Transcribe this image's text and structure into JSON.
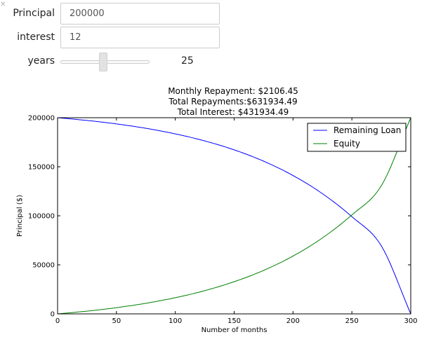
{
  "controls": {
    "principal": {
      "label": "Principal",
      "value": "200000"
    },
    "interest": {
      "label": "interest",
      "value": "12"
    },
    "years": {
      "label": "years",
      "value": 25,
      "min": 0,
      "max": 50,
      "readout": "25"
    }
  },
  "chart_data": {
    "type": "line",
    "title_lines": [
      "Monthly Repayment: $2106.45",
      "Total Repayments:$631934.49",
      "Total Interest: $431934.49"
    ],
    "xlabel": "Number of months",
    "ylabel": "Principal ($)",
    "xlim": [
      0,
      300
    ],
    "ylim": [
      0,
      200000
    ],
    "xticks": [
      0,
      50,
      100,
      150,
      200,
      250,
      300
    ],
    "yticks": [
      0,
      50000,
      100000,
      150000,
      200000
    ],
    "legend": "top-right",
    "grid": false,
    "series": [
      {
        "name": "Remaining Loan",
        "color": "#0000ff",
        "x": [
          0,
          25,
          50,
          75,
          100,
          125,
          150,
          175,
          200,
          225,
          250,
          275,
          300
        ],
        "y": [
          200000,
          197209,
          193673,
          189194,
          183519,
          176329,
          167220,
          155679,
          141058,
          122534,
          99066,
          69335,
          0
        ]
      },
      {
        "name": "Equity",
        "color": "#008000",
        "x": [
          0,
          25,
          50,
          75,
          100,
          125,
          150,
          175,
          200,
          225,
          250,
          275,
          300
        ],
        "y": [
          0,
          2791,
          6327,
          10806,
          16481,
          23671,
          32780,
          44321,
          58942,
          77466,
          100934,
          130665,
          200000
        ]
      }
    ]
  }
}
